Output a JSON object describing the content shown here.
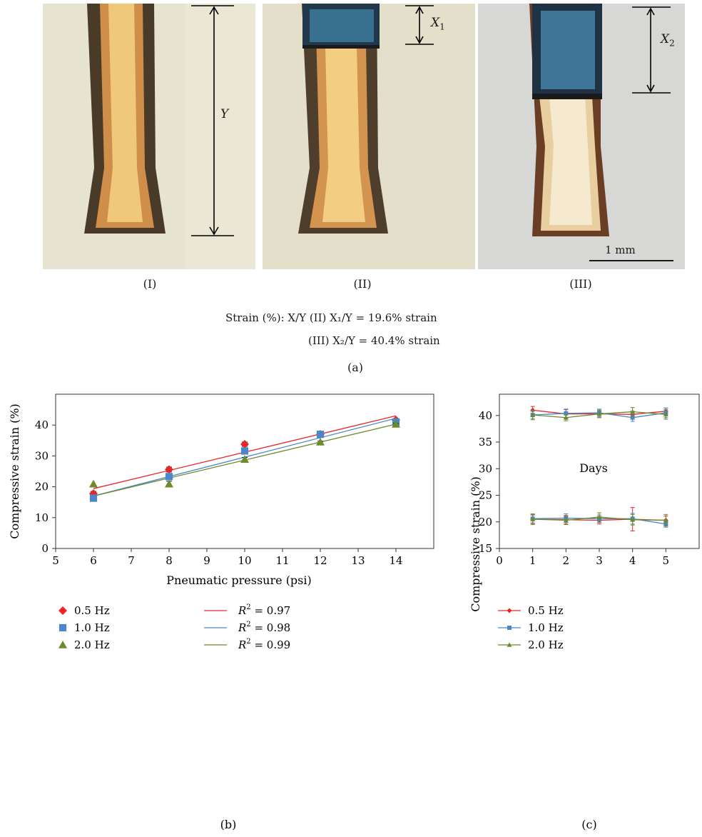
{
  "panel_a": {
    "photos": [
      {
        "label": "(I)",
        "bg": "#e4e1cf",
        "tube": "#d8a860",
        "blue_fraction": 0
      },
      {
        "label": "(II)",
        "bg": "#e2dec9",
        "tube": "#dcae66",
        "blue_fraction": 0.196
      },
      {
        "label": "(III)",
        "bg": "#d9d9d6",
        "tube": "#e6cfa2",
        "blue_fraction": 0.404
      }
    ],
    "markers": {
      "y": "Y",
      "x1": "X",
      "x1_sub": "1",
      "x2": "X",
      "x2_sub": "2"
    },
    "scale_bar": "1 mm",
    "strain_line1": "Strain (%): X/Y (II) X₁/Y = 19.6% strain",
    "strain_line2": "(III) X₂/Y = 40.4% strain",
    "caption": "(a)"
  },
  "chart_data": [
    {
      "type": "scatter",
      "caption": "(b)",
      "xlabel": "Pneumatic pressure (psi)",
      "ylabel": "Compressive strain (%)",
      "xlim": [
        5,
        15
      ],
      "ylim": [
        0,
        50
      ],
      "xticks": [
        5,
        6,
        7,
        8,
        9,
        10,
        11,
        12,
        13,
        14
      ],
      "yticks": [
        0,
        10,
        20,
        30,
        40
      ],
      "grid": false,
      "legend_position": "below",
      "series": [
        {
          "name": "0.5 Hz",
          "marker": "diamond",
          "color": "#e8262a",
          "x": [
            6,
            8,
            10,
            12,
            14
          ],
          "y": [
            17.8,
            25.6,
            33.8,
            37.0,
            41.6
          ],
          "err": [
            0.7,
            0.8,
            0.7,
            0.4,
            0.5
          ]
        },
        {
          "name": "1.0 Hz",
          "marker": "square",
          "color": "#4a86c8",
          "x": [
            6,
            8,
            10,
            12,
            14
          ],
          "y": [
            16.3,
            23.3,
            31.6,
            37.0,
            41.0
          ],
          "err": [
            0.3,
            0.3,
            0.7,
            0.4,
            0.5
          ]
        },
        {
          "name": "2.0 Hz",
          "marker": "triangle",
          "color": "#6d8a2c",
          "x": [
            6,
            8,
            10,
            12,
            14
          ],
          "y": [
            20.9,
            20.9,
            28.9,
            34.5,
            40.3
          ],
          "err": [
            0.0,
            0.9,
            0.6,
            0.3,
            0.3
          ]
        }
      ],
      "fits": [
        {
          "label_prefix": "R",
          "label_sup": "2",
          "label_value": "= 0.97",
          "color": "#e8262a",
          "x": [
            6,
            14
          ],
          "y": [
            19.4,
            43.0
          ]
        },
        {
          "label_prefix": "R",
          "label_sup": "2",
          "label_value": "= 0.98",
          "color": "#4a86c8",
          "x": [
            6,
            14
          ],
          "y": [
            17.0,
            42.2
          ]
        },
        {
          "label_prefix": "R",
          "label_sup": "2",
          "label_value": "= 0.99",
          "color": "#6d8a2c",
          "x": [
            6,
            14
          ],
          "y": [
            17.0,
            40.3
          ]
        }
      ]
    },
    {
      "type": "line",
      "caption": "(c)",
      "xlabel": "Days",
      "ylabel": "Compressive strain (%)",
      "xlim": [
        0,
        6
      ],
      "ylim": [
        15,
        44
      ],
      "xticks": [
        0,
        1,
        2,
        3,
        4,
        5
      ],
      "yticks": [
        15,
        20,
        25,
        30,
        35,
        40
      ],
      "grid": false,
      "legend_position": "below",
      "x": [
        1,
        2,
        3,
        4,
        5
      ],
      "series": [
        {
          "name": "0.5 Hz",
          "marker": "diamond",
          "color": "#e8262a",
          "groups": [
            {
              "y": [
                41.0,
                40.3,
                40.3,
                40.2,
                40.8
              ],
              "err": [
                0.7,
                0.8,
                0.7,
                0.6,
                0.6
              ]
            },
            {
              "y": [
                20.5,
                20.4,
                20.3,
                20.5,
                20.3
              ],
              "err": [
                0.8,
                0.8,
                0.7,
                2.2,
                0.8
              ]
            }
          ]
        },
        {
          "name": "1.0 Hz",
          "marker": "square",
          "color": "#4a86c8",
          "groups": [
            {
              "y": [
                40.1,
                40.4,
                40.5,
                39.6,
                40.5
              ],
              "err": [
                0.7,
                0.8,
                0.7,
                0.7,
                0.9
              ]
            },
            {
              "y": [
                20.6,
                20.7,
                20.6,
                20.6,
                19.6
              ],
              "err": [
                0.8,
                0.8,
                0.7,
                1.0,
                0.6
              ]
            }
          ]
        },
        {
          "name": "2.0 Hz",
          "marker": "triangle",
          "color": "#6d8a2c",
          "groups": [
            {
              "y": [
                40.1,
                39.6,
                40.3,
                40.7,
                40.2
              ],
              "err": [
                0.9,
                0.6,
                0.7,
                0.8,
                0.9
              ]
            },
            {
              "y": [
                20.5,
                20.3,
                20.9,
                20.4,
                20.3
              ],
              "err": [
                1.0,
                0.8,
                0.8,
                1.0,
                1.1
              ]
            }
          ]
        }
      ]
    }
  ]
}
